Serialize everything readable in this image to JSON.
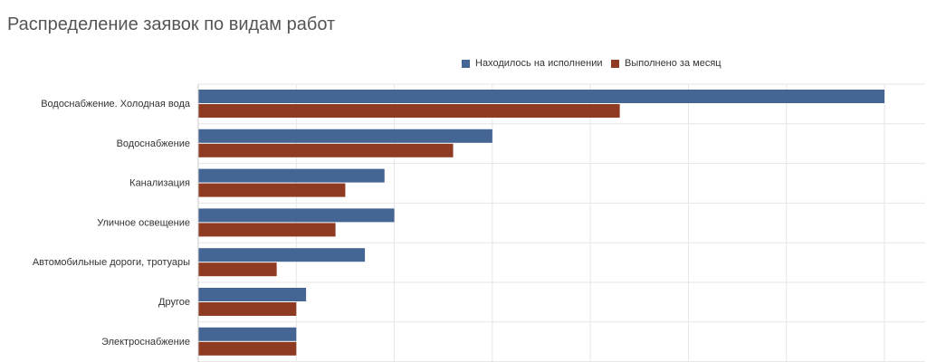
{
  "chart_data": {
    "type": "bar",
    "orientation": "horizontal",
    "title": "Распределение заявок по видам работ",
    "categories": [
      "Водоснабжение. Холодная вода",
      "Водоснабжение",
      "Канализация",
      "Уличное освещение",
      "Автомобильные дороги, тротуары",
      "Другое",
      "Электроснабжение"
    ],
    "series": [
      {
        "name": "Находилось на исполнении",
        "color": "#456594",
        "values": [
          70,
          30,
          19,
          20,
          17,
          11,
          10
        ]
      },
      {
        "name": "Выполнено за месяц",
        "color": "#8f3a22",
        "values": [
          43,
          26,
          15,
          14,
          8,
          10,
          10
        ]
      }
    ],
    "xlim": [
      0,
      75
    ],
    "grid": true,
    "legend": "top-center"
  }
}
